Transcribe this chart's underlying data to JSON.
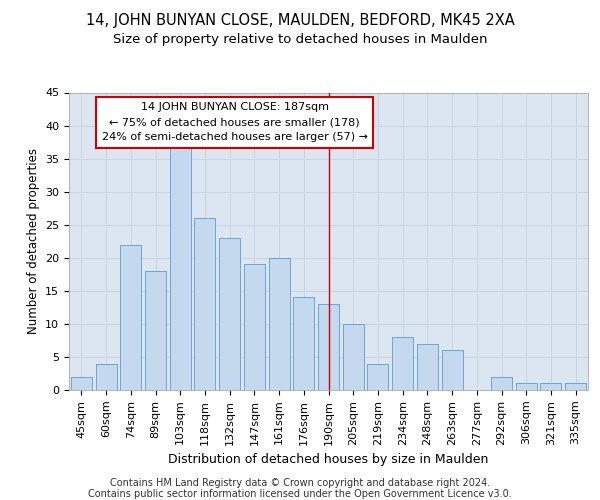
{
  "title": "14, JOHN BUNYAN CLOSE, MAULDEN, BEDFORD, MK45 2XA",
  "subtitle": "Size of property relative to detached houses in Maulden",
  "xlabel": "Distribution of detached houses by size in Maulden",
  "ylabel": "Number of detached properties",
  "categories": [
    "45sqm",
    "60sqm",
    "74sqm",
    "89sqm",
    "103sqm",
    "118sqm",
    "132sqm",
    "147sqm",
    "161sqm",
    "176sqm",
    "190sqm",
    "205sqm",
    "219sqm",
    "234sqm",
    "248sqm",
    "263sqm",
    "277sqm",
    "292sqm",
    "306sqm",
    "321sqm",
    "335sqm"
  ],
  "values": [
    2,
    4,
    22,
    18,
    37,
    26,
    23,
    19,
    20,
    14,
    13,
    10,
    4,
    8,
    7,
    6,
    0,
    2,
    1,
    1,
    1
  ],
  "bar_color": "#c5d9ee",
  "bar_edge_color": "#5b9bd5",
  "plot_bg_color": "#dce6f1",
  "fig_bg_color": "#ffffff",
  "grid_color": "#c8d4e3",
  "annotation_line0": "14 JOHN BUNYAN CLOSE: 187sqm",
  "annotation_line1": "← 75% of detached houses are smaller (178)",
  "annotation_line2": "24% of semi-detached houses are larger (57) →",
  "annotation_box_facecolor": "#ffffff",
  "annotation_box_edgecolor": "#cc0000",
  "red_line_color": "#cc0000",
  "red_line_x": 10,
  "footer_line1": "Contains HM Land Registry data © Crown copyright and database right 2024.",
  "footer_line2": "Contains public sector information licensed under the Open Government Licence v3.0.",
  "ylim": [
    0,
    45
  ],
  "yticks": [
    0,
    5,
    10,
    15,
    20,
    25,
    30,
    35,
    40,
    45
  ],
  "title_fontsize": 10.5,
  "subtitle_fontsize": 9.5,
  "xlabel_fontsize": 9,
  "ylabel_fontsize": 8.5,
  "tick_fontsize": 8,
  "annot_fontsize": 8,
  "footer_fontsize": 7
}
